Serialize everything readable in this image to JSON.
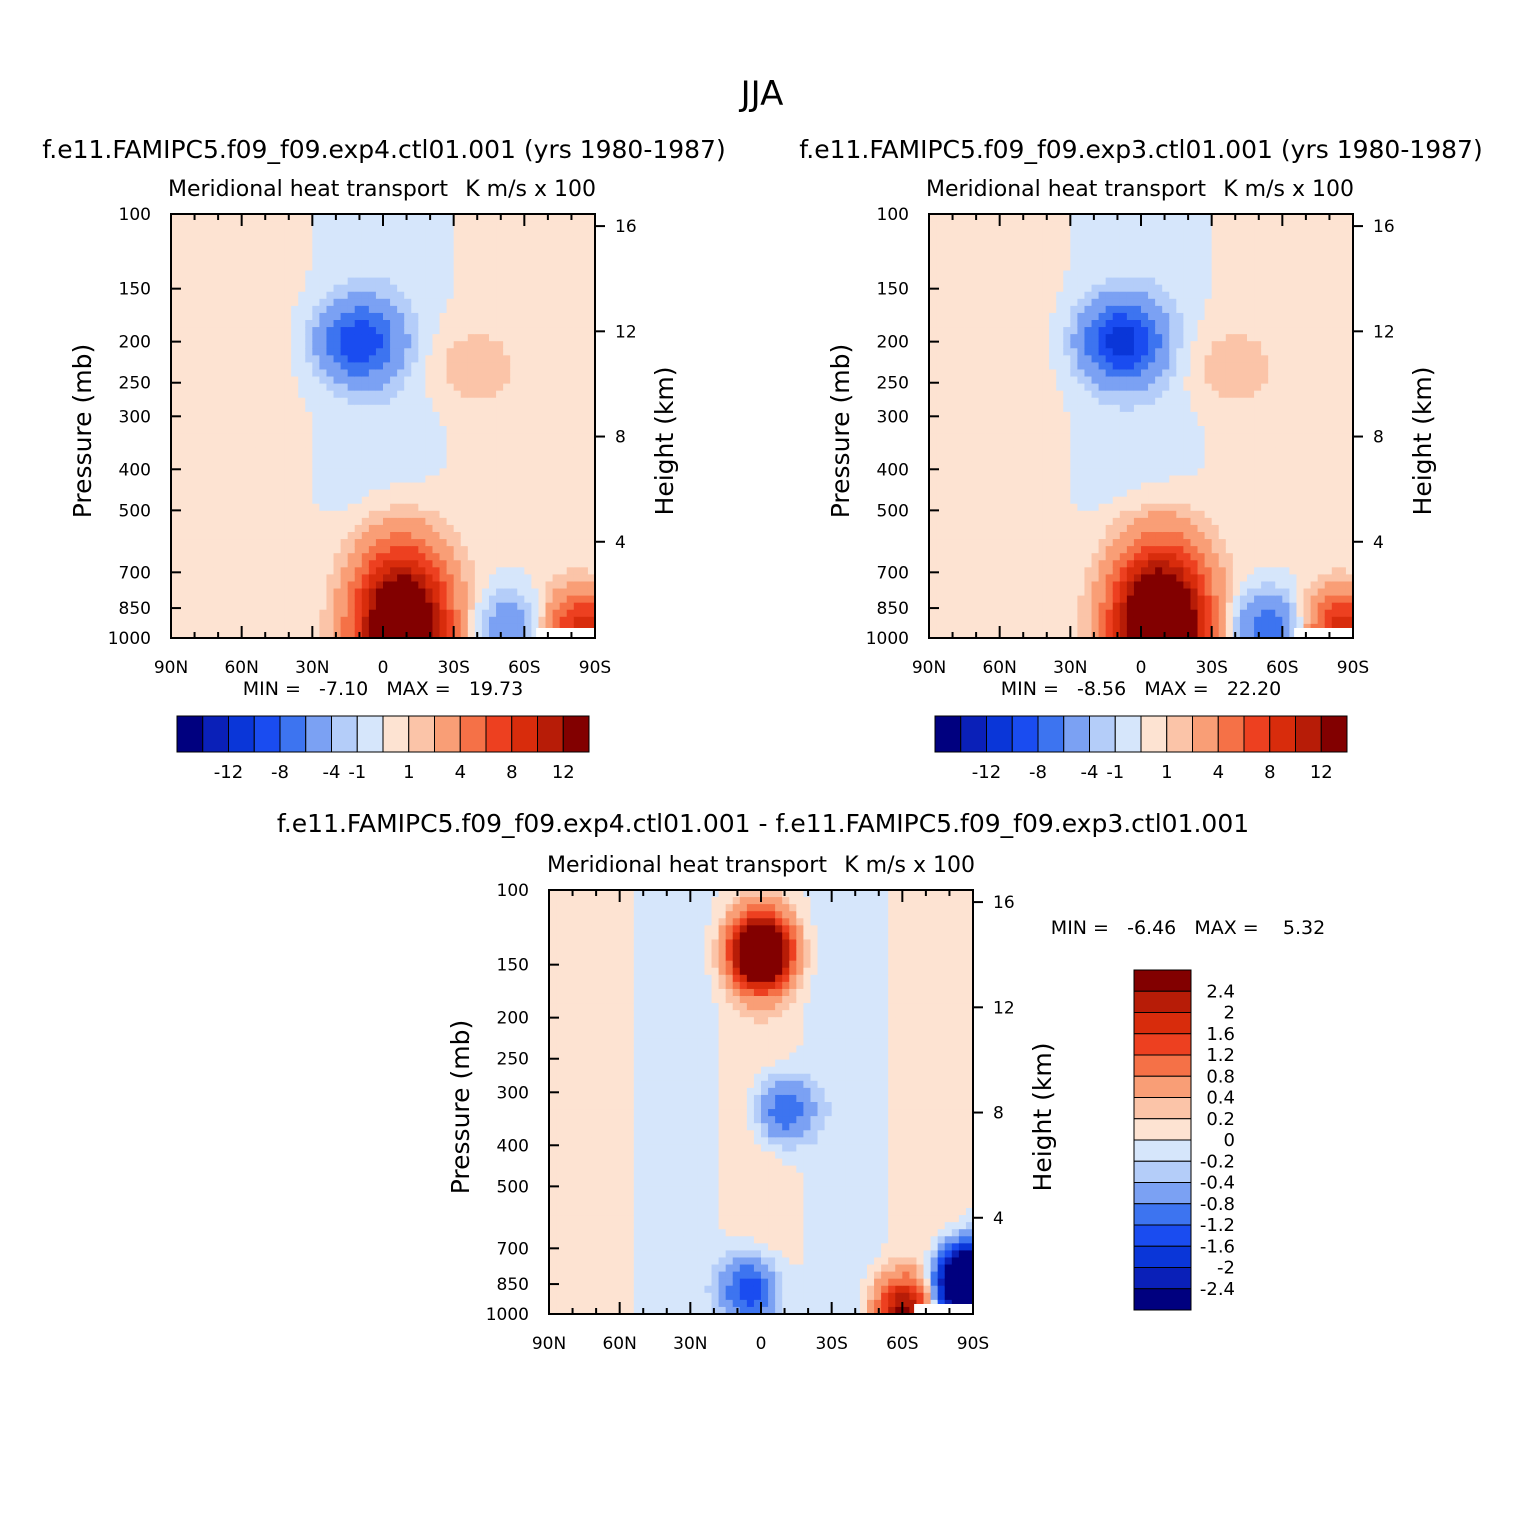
{
  "page": {
    "title": "JJA",
    "bottom_title": "f.e11.FAMIPC5.f09_f09.exp4.ctl01.001 - f.e11.FAMIPC5.f09_f09.exp3.ctl01.001"
  },
  "colors": {
    "div": [
      "#00007f",
      "#0a20b8",
      "#0a36d8",
      "#1a4cf0",
      "#3d74f0",
      "#7ba1f3",
      "#b4cdf9",
      "#d6e6fb",
      "#fde3d2",
      "#fbc4a8",
      "#f99e76",
      "#f57147",
      "#ed4020",
      "#d82c0c",
      "#b71c07",
      "#820000"
    ],
    "diff": [
      "#00007f",
      "#0a20b8",
      "#0a36d8",
      "#1a4cf0",
      "#3d74f0",
      "#7ba1f3",
      "#b4cdf9",
      "#d6e6fb",
      "#fde3d2",
      "#fbc4a8",
      "#f99e76",
      "#f57147",
      "#ed4020",
      "#d82c0c",
      "#b71c07",
      "#820000"
    ]
  },
  "chart_data": [
    {
      "id": "left",
      "type": "heatmap",
      "title": "f.e11.FAMIPC5.f09_f09.exp4.ctl01.001 (yrs 1980-1987)",
      "left_string": "Meridional heat transport",
      "right_string": "K m/s x 100",
      "xlabel": "",
      "ylabel": "Pressure (mb)",
      "ylabel_right": "Height (km)",
      "x_ticks": [
        "90N",
        "60N",
        "30N",
        "0",
        "30S",
        "60S",
        "90S"
      ],
      "y_ticks": [
        "100",
        "150",
        "200",
        "250",
        "300",
        "400",
        "500",
        "700",
        "850",
        "1000"
      ],
      "y_ticks_right": [
        "16",
        "12",
        "8",
        "4"
      ],
      "minmax": "MIN =   -7.10   MAX =   19.73",
      "colorbar_labels": [
        "-12",
        "-8",
        "-4",
        "-1",
        "1",
        "4",
        "8",
        "12"
      ],
      "features": [
        {
          "lat": 10,
          "p": 200,
          "v": -7.1
        },
        {
          "lat": -35,
          "p": 230,
          "v": 1.5
        },
        {
          "lat": -8,
          "p": 960,
          "v": 19.73
        },
        {
          "lat": -55,
          "p": 950,
          "v": -4
        },
        {
          "lat": -85,
          "p": 950,
          "v": 9
        }
      ]
    },
    {
      "id": "right",
      "type": "heatmap",
      "title": "f.e11.FAMIPC5.f09_f09.exp3.ctl01.001 (yrs 1980-1987)",
      "left_string": "Meridional heat transport",
      "right_string": "K m/s x 100",
      "xlabel": "",
      "ylabel": "Pressure (mb)",
      "ylabel_right": "Height (km)",
      "x_ticks": [
        "90N",
        "60N",
        "30N",
        "0",
        "30S",
        "60S",
        "90S"
      ],
      "y_ticks": [
        "100",
        "150",
        "200",
        "250",
        "300",
        "400",
        "500",
        "700",
        "850",
        "1000"
      ],
      "y_ticks_right": [
        "16",
        "12",
        "8",
        "4"
      ],
      "minmax": "MIN =   -8.56   MAX =   22.20",
      "colorbar_labels": [
        "-12",
        "-8",
        "-4",
        "-1",
        "1",
        "4",
        "8",
        "12"
      ],
      "features": [
        {
          "lat": 8,
          "p": 200,
          "v": -8.56
        },
        {
          "lat": -35,
          "p": 230,
          "v": 1.5
        },
        {
          "lat": -8,
          "p": 960,
          "v": 22.2
        },
        {
          "lat": -55,
          "p": 960,
          "v": -6
        },
        {
          "lat": -85,
          "p": 950,
          "v": 9
        }
      ]
    },
    {
      "id": "diff",
      "type": "heatmap",
      "title": "",
      "left_string": "Meridional heat transport",
      "right_string": "K m/s x 100",
      "xlabel": "",
      "ylabel": "Pressure (mb)",
      "ylabel_right": "Height (km)",
      "x_ticks": [
        "90N",
        "60N",
        "30N",
        "0",
        "30S",
        "60S",
        "90S"
      ],
      "y_ticks": [
        "100",
        "150",
        "200",
        "250",
        "300",
        "400",
        "500",
        "700",
        "850",
        "1000"
      ],
      "y_ticks_right": [
        "16",
        "12",
        "8",
        "4"
      ],
      "minmax": "MIN =   -6.46   MAX =    5.32",
      "colorbar_labels": [
        "2.4",
        "2",
        "1.6",
        "1.2",
        "0.8",
        "0.4",
        "0.2",
        "0",
        "-0.2",
        "-0.4",
        "-0.8",
        "-1.2",
        "-1.6",
        "-2",
        "-2.4"
      ],
      "features": [
        {
          "lat": 0,
          "p": 140,
          "v": 5.32
        },
        {
          "lat": -10,
          "p": 330,
          "v": -1.2
        },
        {
          "lat": 5,
          "p": 880,
          "v": -1.6
        },
        {
          "lat": -60,
          "p": 980,
          "v": 2.4
        },
        {
          "lat": -88,
          "p": 850,
          "v": -6.46
        }
      ]
    }
  ]
}
